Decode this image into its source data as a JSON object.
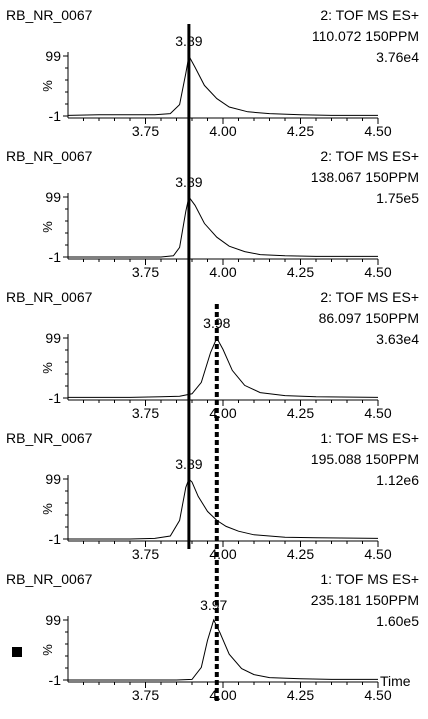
{
  "chart_data": {
    "type": "line",
    "xlabel": "Time",
    "xlim": [
      3.5,
      4.5
    ],
    "ylim": [
      -1,
      99
    ],
    "x_ticks": [
      3.75,
      4.0,
      4.25,
      4.5
    ],
    "x_tick_labels": [
      "3.75",
      "4.00",
      "4.25",
      "4.50"
    ],
    "y_ticks": [
      -1,
      99
    ],
    "y_tick_labels": [
      "-1",
      "99"
    ],
    "ylabel": "%",
    "reference_lines": [
      {
        "style": "solid",
        "x": 3.89,
        "spans_panels": [
          0,
          1,
          2,
          3
        ]
      },
      {
        "style": "dotted",
        "x": 3.98,
        "spans_panels": [
          2,
          3,
          4
        ]
      }
    ],
    "panels": [
      {
        "sample": "RB_NR_0067",
        "function": "2: TOF MS ES+",
        "mass": "110.072 150PPM",
        "intensity": "3.76e4",
        "peak_label": "3.89",
        "peak_x": 3.89,
        "x": [
          3.5,
          3.6,
          3.7,
          3.78,
          3.83,
          3.86,
          3.88,
          3.89,
          3.91,
          3.94,
          3.98,
          4.02,
          4.08,
          4.15,
          4.25,
          4.35,
          4.5
        ],
        "y": [
          0,
          1,
          1,
          1,
          3,
          18,
          70,
          99,
          80,
          50,
          28,
          14,
          6,
          3,
          1,
          0,
          0
        ]
      },
      {
        "sample": "RB_NR_0067",
        "function": "2: TOF MS ES+",
        "mass": "138.067 150PPM",
        "intensity": "1.75e5",
        "peak_label": "3.89",
        "peak_x": 3.89,
        "x": [
          3.5,
          3.7,
          3.8,
          3.84,
          3.86,
          3.88,
          3.89,
          3.91,
          3.94,
          3.98,
          4.02,
          4.07,
          4.12,
          4.2,
          4.3,
          4.5
        ],
        "y": [
          -1,
          -1,
          -1,
          1,
          15,
          75,
          99,
          85,
          55,
          32,
          17,
          8,
          3,
          1,
          0,
          0
        ]
      },
      {
        "sample": "RB_NR_0067",
        "function": "2: TOF MS ES+",
        "mass": "86.097 150PPM",
        "intensity": "3.63e4",
        "peak_label": "3.98",
        "peak_x": 3.98,
        "x": [
          3.5,
          3.6,
          3.7,
          3.8,
          3.86,
          3.9,
          3.93,
          3.96,
          3.98,
          4.0,
          4.03,
          4.07,
          4.12,
          4.2,
          4.3,
          4.5
        ],
        "y": [
          0,
          0,
          0,
          1,
          2,
          6,
          25,
          75,
          99,
          80,
          45,
          20,
          8,
          3,
          1,
          0
        ]
      },
      {
        "sample": "RB_NR_0067",
        "function": "1: TOF MS ES+",
        "mass": "195.088 150PPM",
        "intensity": "1.12e6",
        "peak_label": "3.89",
        "peak_x": 3.89,
        "x": [
          3.5,
          3.7,
          3.78,
          3.83,
          3.86,
          3.88,
          3.89,
          3.9,
          3.92,
          3.95,
          3.98,
          4.01,
          4.05,
          4.1,
          4.2,
          4.3,
          4.5
        ],
        "y": [
          -1,
          -1,
          0,
          4,
          30,
          85,
          99,
          94,
          70,
          45,
          30,
          20,
          12,
          6,
          2,
          1,
          0
        ]
      },
      {
        "sample": "RB_NR_0067",
        "function": "1: TOF MS ES+",
        "mass": "235.181 150PPM",
        "intensity": "1.60e5",
        "peak_label": "3.97",
        "peak_x": 3.97,
        "x": [
          3.5,
          3.7,
          3.85,
          3.9,
          3.93,
          3.95,
          3.97,
          3.99,
          4.02,
          4.06,
          4.1,
          4.15,
          4.25,
          4.35,
          4.5
        ],
        "y": [
          -1,
          -1,
          -1,
          0,
          20,
          65,
          99,
          78,
          42,
          18,
          8,
          3,
          1,
          0,
          0
        ]
      }
    ]
  }
}
